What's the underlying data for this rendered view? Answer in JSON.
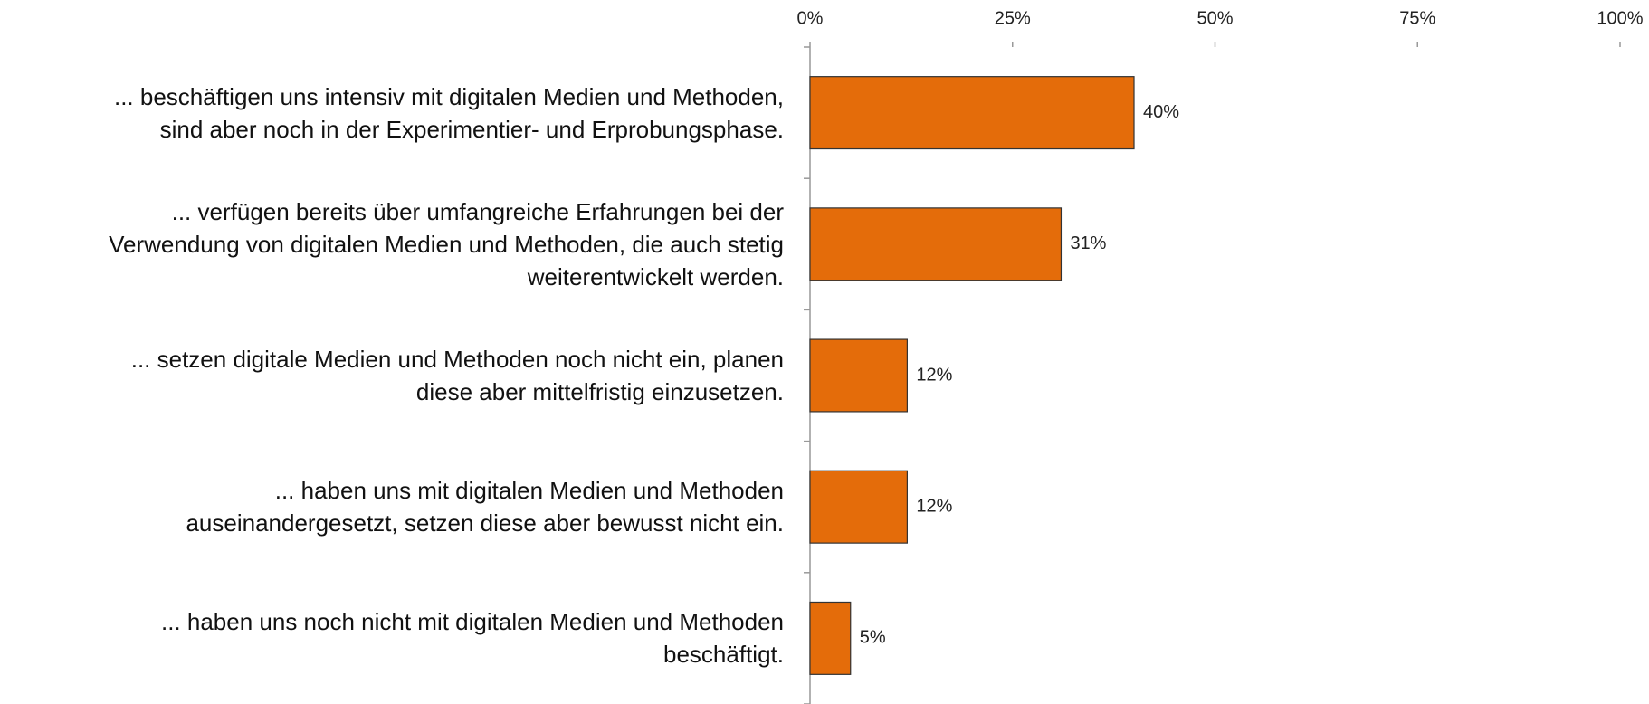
{
  "chart_data": {
    "type": "barh",
    "categories": [
      "... beschäftigen uns intensiv mit digitalen Medien und Methoden,\nsind aber noch in der Experimentier- und Erprobungsphase.",
      "... verfügen bereits über umfangreiche Erfahrungen bei der\nVerwendung von digitalen Medien und Methoden, die auch stetig\nweiterentwickelt werden.",
      "... setzen digitale Medien und Methoden noch nicht ein, planen\ndiese aber mittelfristig einzusetzen.",
      "... haben uns mit digitalen Medien und Methoden\nauseinandergesetzt, setzen diese aber bewusst nicht ein.",
      "... haben uns noch nicht mit digitalen Medien und Methoden\nbeschäftigt."
    ],
    "values": [
      40,
      31,
      12,
      12,
      5
    ],
    "value_labels": [
      "40%",
      "31%",
      "12%",
      "12%",
      "5%"
    ],
    "color": "#e46c0a",
    "xlim": [
      0,
      100
    ],
    "xticks": [
      {
        "value": 0,
        "label": "0%"
      },
      {
        "value": 25,
        "label": "25%"
      },
      {
        "value": 50,
        "label": "50%"
      },
      {
        "value": 75,
        "label": "75%"
      },
      {
        "value": 100,
        "label": "100%"
      }
    ],
    "grid": false
  }
}
